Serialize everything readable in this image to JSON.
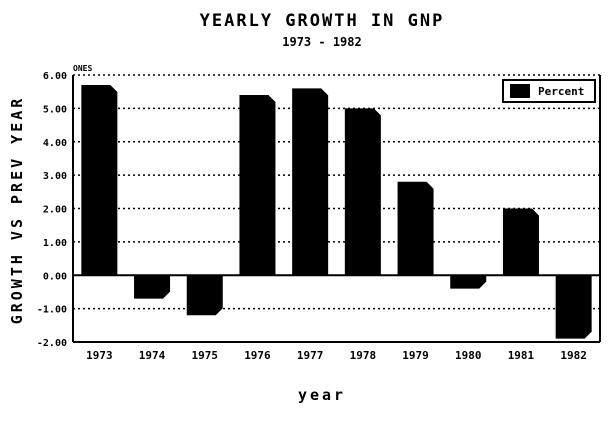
{
  "chart_data": {
    "type": "bar",
    "title": "YEARLY GROWTH IN GNP",
    "subtitle": "1973 - 1982",
    "xlabel": "year",
    "ylabel": "GROWTH VS PREV YEAR",
    "unit_label": "ONES",
    "categories": [
      "1973",
      "1974",
      "1975",
      "1976",
      "1977",
      "1978",
      "1979",
      "1980",
      "1981",
      "1982"
    ],
    "series": [
      {
        "name": "Percent",
        "values": [
          5.7,
          -0.7,
          -1.2,
          5.4,
          5.6,
          5.0,
          2.8,
          -0.4,
          2.0,
          -1.9
        ]
      }
    ],
    "ylim": [
      -2.0,
      6.0
    ],
    "yticks": [
      "6.00",
      "5.00",
      "4.00",
      "3.00",
      "2.00",
      "1.00",
      "0.00",
      "-1.00",
      "-2.00"
    ],
    "grid": "horizontal dotted",
    "legend_position": "top-right",
    "bar_color": "#000000"
  }
}
